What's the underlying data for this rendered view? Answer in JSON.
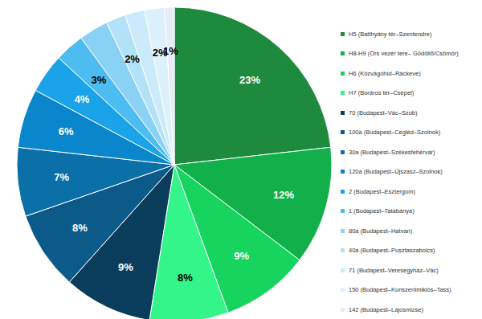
{
  "chart_data": {
    "type": "pie",
    "categories": [
      "H5 (Batthyány tér–Szentendre)",
      "H8-H9 (Örs vezér tere– Gödöllő/Csömör)",
      "H6 (Közvágóhíd–Ráckeve)",
      "H7 (Boráros tér–Csepel)",
      "70 (Budapest–Vác–Szob)",
      "100a (Budapest–Cegléd–Szolnok)",
      "30a (Budapest–Székesfehérvár)",
      "120a (Budapest–Újszász–Szolnok)",
      "2 (Budapest–Esztergom)",
      "1 (Budapest–Tatabánya)",
      "80a (Budapest–Hatvan)",
      "40a (Budapest–Pusztaszabolcs)",
      "71 (Budapest–Veresegyház–Vác)",
      "150 (Budapest–Kunszentmiklós–Tass)",
      "142 (Budapest–Lajosmizse)"
    ],
    "values": [
      23,
      12,
      9,
      8,
      9,
      8,
      7,
      6,
      4,
      3,
      3,
      2,
      2,
      2,
      1
    ],
    "value_labels": [
      "23%",
      "12%",
      "9%",
      "8%",
      "9%",
      "8%",
      "7%",
      "6%",
      "4%",
      "3%",
      null,
      "2%",
      null,
      "2%",
      "1%"
    ],
    "colors": [
      "#1e8a3e",
      "#12b04a",
      "#16d45e",
      "#33f58a",
      "#0a3d5c",
      "#0b5a8a",
      "#0b6fa8",
      "#0a86cc",
      "#1aa3e8",
      "#4dbcf0",
      "#8ad2f5",
      "#b3e2f8",
      "#cbebfb",
      "#dcf1fc",
      "#e6ecf8"
    ],
    "data_labels": true,
    "legend": "right"
  }
}
